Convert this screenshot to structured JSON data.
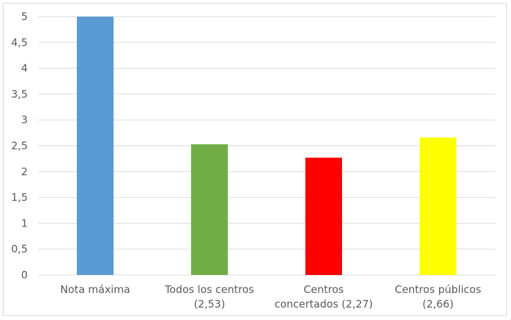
{
  "chart_data": {
    "type": "bar",
    "title": "",
    "xlabel": "",
    "ylabel": "",
    "categories": [
      [
        "Nota máxima"
      ],
      [
        "Todos los centros",
        "(2,53)"
      ],
      [
        "Centros",
        "concertados (2,27)"
      ],
      [
        "Centros públicos",
        "(2,66)"
      ]
    ],
    "values": [
      5,
      2.53,
      2.27,
      2.66
    ],
    "bar_colors": [
      "#5b9bd5",
      "#70ad47",
      "#ff0000",
      "#ffff00"
    ],
    "ylim": [
      0,
      5
    ],
    "yticks": [
      "0",
      "0,5",
      "1",
      "1,5",
      "2",
      "2,5",
      "3",
      "3,5",
      "4",
      "4,5",
      "5"
    ],
    "ytick_values": [
      0,
      0.5,
      1,
      1.5,
      2,
      2.5,
      3,
      3.5,
      4,
      4.5,
      5
    ],
    "grid": true,
    "legend": "none"
  }
}
